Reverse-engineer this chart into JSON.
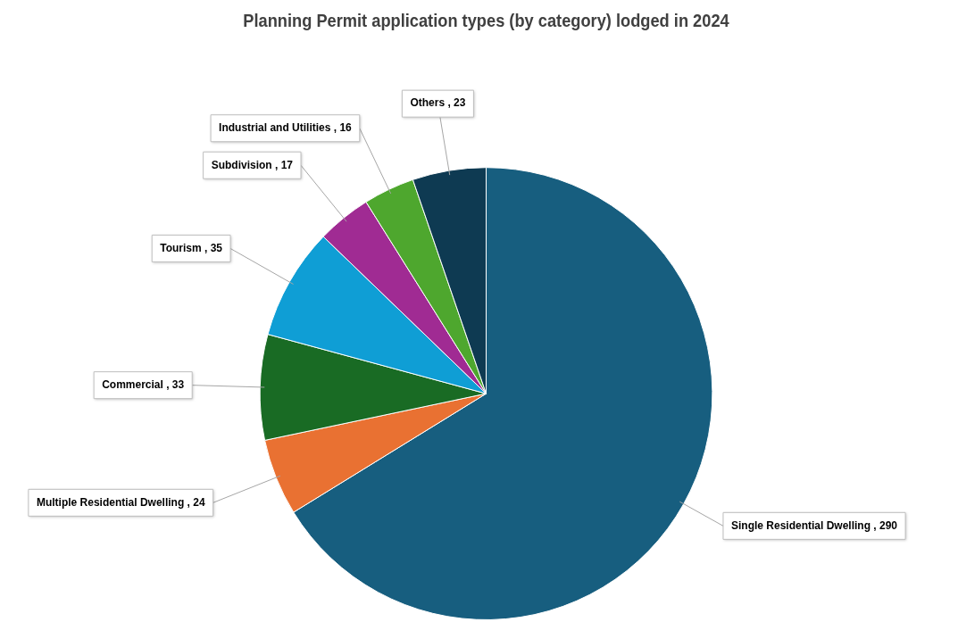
{
  "chart_data": {
    "type": "pie",
    "title": "Planning Permit application types (by category) lodged in 2024",
    "categories": [
      "Single Residential Dwelling",
      "Multiple Residential Dwelling",
      "Commercial",
      "Tourism",
      "Subdivision",
      "Industrial and Utilities",
      "Others"
    ],
    "values": [
      290,
      24,
      33,
      35,
      17,
      16,
      23
    ],
    "colors": [
      "#175e7f",
      "#e97132",
      "#196b24",
      "#0f9ed5",
      "#a02b93",
      "#4ea72e",
      "#0e3a52"
    ],
    "value_labels": [
      ", 290",
      ", 24",
      ", 33",
      ", 35",
      ", 17",
      ", 16",
      ", 23"
    ],
    "legend": false
  }
}
